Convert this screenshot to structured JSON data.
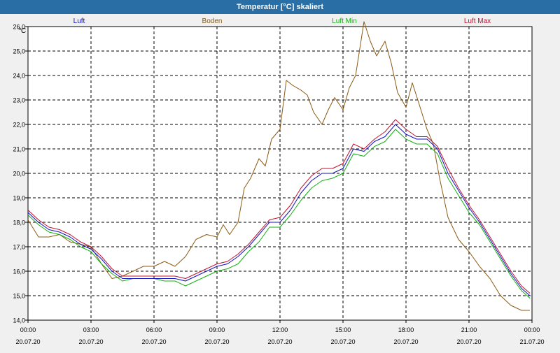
{
  "window": {
    "title": "Temperatur [°C] skaliert"
  },
  "colors": {
    "luft": "#1010c0",
    "boden": "#8b5a14",
    "luft_min": "#10b010",
    "luft_max": "#c01030",
    "grid": "#000000",
    "background": "#ffffff"
  },
  "chart_data": {
    "type": "line",
    "title": "Temperatur [°C] skaliert",
    "ylabel": "°C",
    "xlabel": "",
    "ylim": [
      14.0,
      26.0
    ],
    "xlim": [
      0,
      24
    ],
    "yticks": [
      "14,0",
      "15,0",
      "16,0",
      "17,0",
      "18,0",
      "19,0",
      "20,0",
      "21,0",
      "22,0",
      "23,0",
      "24,0",
      "25,0",
      "26,0"
    ],
    "xticks": [
      {
        "time": "00:00",
        "date": "20.07.20"
      },
      {
        "time": "03:00",
        "date": "20.07.20"
      },
      {
        "time": "06:00",
        "date": "20.07.20"
      },
      {
        "time": "09:00",
        "date": "20.07.20"
      },
      {
        "time": "12:00",
        "date": "20.07.20"
      },
      {
        "time": "15:00",
        "date": "20.07.20"
      },
      {
        "time": "18:00",
        "date": "20.07.20"
      },
      {
        "time": "21:00",
        "date": "20.07.20"
      },
      {
        "time": "00:00",
        "date": "21.07.20"
      }
    ],
    "grid": true,
    "legend": [
      "Luft",
      "Boden",
      "Luft Min",
      "Luft Max"
    ],
    "series": [
      {
        "name": "Luft",
        "color": "#1010c0",
        "x": [
          0,
          0.5,
          1,
          1.5,
          2,
          2.5,
          3,
          3.5,
          4,
          4.5,
          5,
          5.5,
          6,
          6.5,
          7,
          7.5,
          8,
          8.5,
          9,
          9.5,
          10,
          10.5,
          11,
          11.5,
          12,
          12.5,
          13,
          13.5,
          14,
          14.5,
          15,
          15.5,
          16,
          16.5,
          17,
          17.5,
          18,
          18.5,
          19,
          19.5,
          20,
          20.5,
          21,
          21.5,
          22,
          22.5,
          23,
          23.5,
          23.9
        ],
        "y": [
          18.4,
          18.0,
          17.7,
          17.6,
          17.4,
          17.1,
          16.9,
          16.5,
          16.0,
          15.7,
          15.7,
          15.7,
          15.7,
          15.7,
          15.7,
          15.6,
          15.8,
          16.0,
          16.2,
          16.3,
          16.6,
          17.0,
          17.5,
          18.0,
          18.0,
          18.5,
          19.2,
          19.7,
          20.0,
          20.0,
          20.2,
          21.0,
          20.9,
          21.3,
          21.5,
          22.0,
          21.6,
          21.4,
          21.4,
          21.0,
          20.0,
          19.3,
          18.6,
          18.0,
          17.3,
          16.6,
          15.9,
          15.3,
          15.0
        ]
      },
      {
        "name": "Boden",
        "color": "#8b5a14",
        "x": [
          0,
          0.5,
          1,
          1.5,
          2,
          2.5,
          3,
          3.5,
          4,
          4.5,
          5,
          5.5,
          6,
          6.5,
          7,
          7.5,
          8,
          8.5,
          9,
          9.3,
          9.6,
          10,
          10.3,
          10.6,
          11,
          11.3,
          11.6,
          12,
          12.3,
          12.6,
          13,
          13.3,
          13.6,
          14,
          14.3,
          14.6,
          15,
          15.3,
          15.6,
          16,
          16.3,
          16.6,
          17,
          17.3,
          17.6,
          18,
          18.3,
          18.6,
          19,
          19.3,
          19.6,
          20,
          20.5,
          21,
          21.5,
          22,
          22.5,
          23,
          23.5,
          23.9
        ],
        "y": [
          18.1,
          17.4,
          17.4,
          17.5,
          17.2,
          17.1,
          17.0,
          16.3,
          15.7,
          15.8,
          16.0,
          16.2,
          16.2,
          16.4,
          16.2,
          16.6,
          17.3,
          17.5,
          17.4,
          17.9,
          17.5,
          18.0,
          19.4,
          19.8,
          20.6,
          20.3,
          21.4,
          21.8,
          23.8,
          23.6,
          23.4,
          23.2,
          22.5,
          22.0,
          22.6,
          23.1,
          22.6,
          23.5,
          24.0,
          26.2,
          25.4,
          24.8,
          25.4,
          24.5,
          23.3,
          22.7,
          23.7,
          22.9,
          21.8,
          21.2,
          19.8,
          18.2,
          17.3,
          16.8,
          16.2,
          15.7,
          15.0,
          14.6,
          14.4,
          14.4
        ]
      },
      {
        "name": "Luft Min",
        "color": "#10b010",
        "x": [
          0,
          0.5,
          1,
          1.5,
          2,
          2.5,
          3,
          3.5,
          4,
          4.5,
          5,
          5.5,
          6,
          6.5,
          7,
          7.5,
          8,
          8.5,
          9,
          9.5,
          10,
          10.5,
          11,
          11.5,
          12,
          12.5,
          13,
          13.5,
          14,
          14.5,
          15,
          15.5,
          16,
          16.5,
          17,
          17.5,
          18,
          18.5,
          19,
          19.5,
          20,
          20.5,
          21,
          21.5,
          22,
          22.5,
          23,
          23.5,
          23.9
        ],
        "y": [
          18.3,
          17.9,
          17.6,
          17.5,
          17.3,
          17.0,
          16.8,
          16.3,
          15.9,
          15.6,
          15.7,
          15.7,
          15.7,
          15.6,
          15.6,
          15.4,
          15.6,
          15.8,
          16.0,
          16.1,
          16.3,
          16.8,
          17.2,
          17.8,
          17.8,
          18.3,
          18.9,
          19.4,
          19.7,
          19.8,
          20.0,
          20.8,
          20.7,
          21.1,
          21.3,
          21.8,
          21.4,
          21.2,
          21.2,
          20.8,
          19.8,
          19.1,
          18.4,
          17.9,
          17.2,
          16.5,
          15.8,
          15.2,
          14.9
        ]
      },
      {
        "name": "Luft Max",
        "color": "#c01030",
        "x": [
          0,
          0.5,
          1,
          1.5,
          2,
          2.5,
          3,
          3.5,
          4,
          4.5,
          5,
          5.5,
          6,
          6.5,
          7,
          7.5,
          8,
          8.5,
          9,
          9.5,
          10,
          10.5,
          11,
          11.5,
          12,
          12.5,
          13,
          13.5,
          14,
          14.5,
          15,
          15.5,
          16,
          16.5,
          17,
          17.5,
          18,
          18.5,
          19,
          19.5,
          20,
          20.5,
          21,
          21.5,
          22,
          22.5,
          23,
          23.5,
          23.9
        ],
        "y": [
          18.5,
          18.1,
          17.8,
          17.7,
          17.5,
          17.2,
          17.0,
          16.6,
          16.1,
          15.8,
          15.8,
          15.8,
          15.8,
          15.8,
          15.8,
          15.7,
          15.9,
          16.1,
          16.3,
          16.4,
          16.7,
          17.1,
          17.6,
          18.1,
          18.2,
          18.7,
          19.4,
          19.9,
          20.2,
          20.2,
          20.4,
          21.2,
          21.0,
          21.4,
          21.7,
          22.2,
          21.8,
          21.5,
          21.5,
          21.1,
          20.2,
          19.4,
          18.7,
          18.1,
          17.4,
          16.7,
          16.0,
          15.4,
          15.1
        ]
      }
    ]
  }
}
